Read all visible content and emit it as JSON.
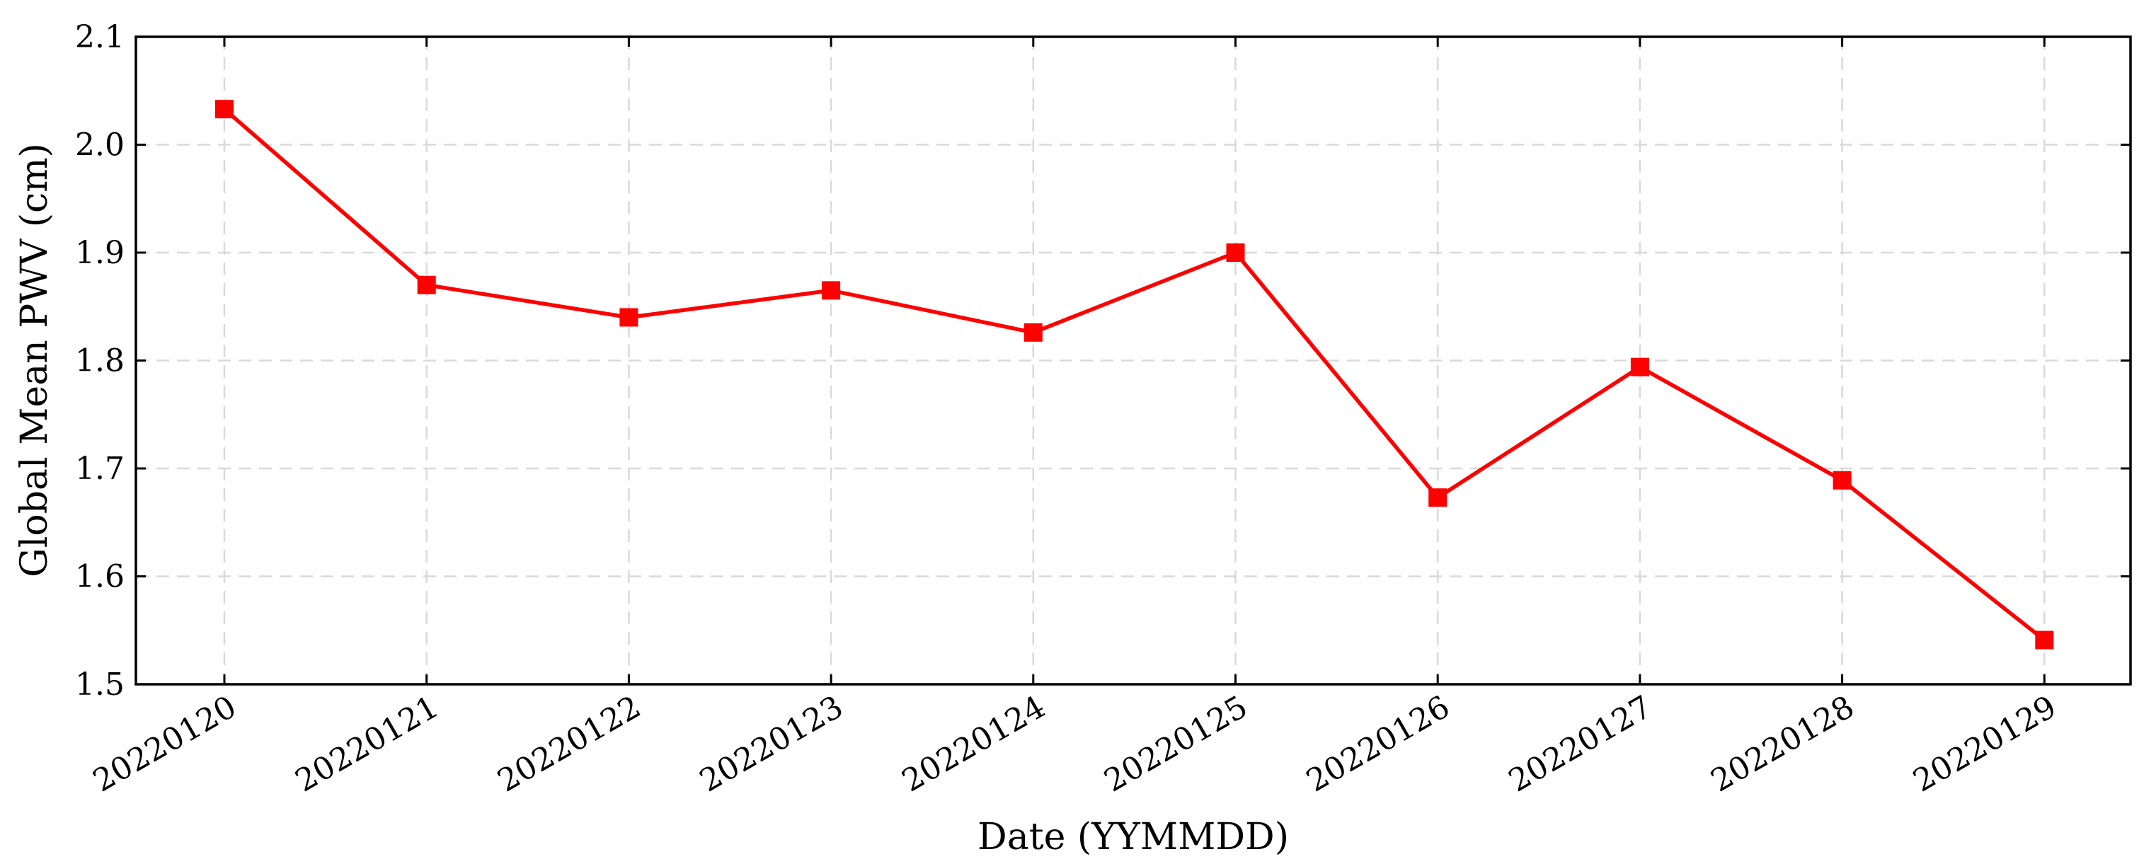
{
  "chart_data": {
    "type": "line",
    "xlabel": "Date (YYMMDD)",
    "ylabel": "Global Mean PWV (cm)",
    "categories": [
      "20220120",
      "20220121",
      "20220122",
      "20220123",
      "20220124",
      "20220125",
      "20220126",
      "20220127",
      "20220128",
      "20220129"
    ],
    "series": [
      {
        "values": [
          2.033,
          1.87,
          1.84,
          1.865,
          1.826,
          1.9,
          1.673,
          1.794,
          1.689,
          1.541
        ],
        "color": "#ff0000",
        "marker": "square"
      }
    ],
    "ylim": [
      1.5,
      2.1
    ],
    "yticks": [
      "1.5",
      "1.6",
      "1.7",
      "1.8",
      "1.9",
      "2.0",
      "2.1"
    ],
    "grid": true,
    "legend": "none"
  }
}
